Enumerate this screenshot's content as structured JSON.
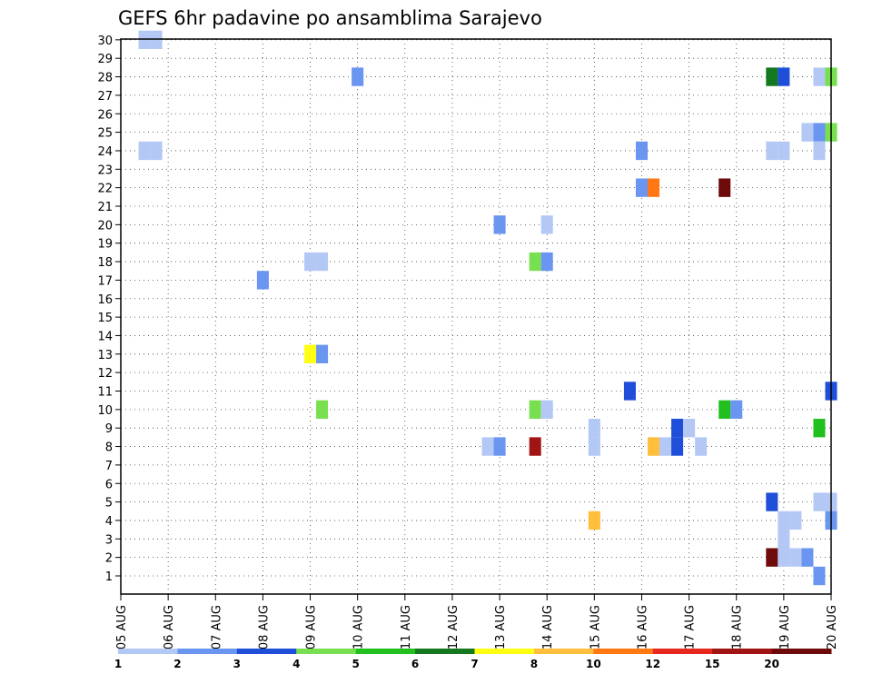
{
  "chart_data": {
    "type": "heatmap",
    "title": "GEFS 6hr padavine po ansamblima Sarajevo",
    "xlabel": "",
    "ylabel": "",
    "x_ticks": [
      "05 AUG",
      "06 AUG",
      "07 AUG",
      "08 AUG",
      "09 AUG",
      "10 AUG",
      "11 AUG",
      "12 AUG",
      "13 AUG",
      "14 AUG",
      "15 AUG",
      "16 AUG",
      "17 AUG",
      "18 AUG",
      "19 AUG",
      "20 AUG"
    ],
    "y_ticks": [
      1,
      2,
      3,
      4,
      5,
      6,
      7,
      8,
      9,
      10,
      11,
      12,
      13,
      14,
      15,
      16,
      17,
      18,
      19,
      20,
      21,
      22,
      23,
      24,
      25,
      26,
      27,
      28,
      29,
      30
    ],
    "xlim": [
      0,
      15
    ],
    "ylim": [
      0,
      30.5
    ],
    "x_unit": "days since 05 AUG (6-hourly steps)",
    "grid": "dotted",
    "legend": {
      "position": "bottom",
      "colors": [
        "#b4c8f5",
        "#6a95f0",
        "#1f4fd9",
        "#78e050",
        "#22c01e",
        "#14781e",
        "#ffff14",
        "#ffbe3c",
        "#ff7814",
        "#e6281e",
        "#a01414",
        "#6e0a0a"
      ],
      "labels": [
        "1",
        "2",
        "3",
        "4",
        "5",
        "6",
        "7",
        "8",
        "10",
        "12",
        "15",
        "20"
      ]
    },
    "cells": [
      {
        "x": 0.5,
        "y": 30,
        "c": 1
      },
      {
        "x": 0.75,
        "y": 30,
        "c": 1
      },
      {
        "x": 5.0,
        "y": 28,
        "c": 2
      },
      {
        "x": 13.75,
        "y": 28,
        "c": 6
      },
      {
        "x": 14.0,
        "y": 28,
        "c": 3
      },
      {
        "x": 14.75,
        "y": 28,
        "c": 1
      },
      {
        "x": 15.0,
        "y": 28,
        "c": 4
      },
      {
        "x": 14.5,
        "y": 25,
        "c": 1
      },
      {
        "x": 14.75,
        "y": 25,
        "c": 2
      },
      {
        "x": 15.0,
        "y": 25,
        "c": 4
      },
      {
        "x": 0.5,
        "y": 24,
        "c": 1
      },
      {
        "x": 0.75,
        "y": 24,
        "c": 1
      },
      {
        "x": 11.0,
        "y": 24,
        "c": 2
      },
      {
        "x": 13.75,
        "y": 24,
        "c": 1
      },
      {
        "x": 14.0,
        "y": 24,
        "c": 1
      },
      {
        "x": 14.75,
        "y": 24,
        "c": 1
      },
      {
        "x": 11.0,
        "y": 22,
        "c": 2
      },
      {
        "x": 11.25,
        "y": 22,
        "c": 9
      },
      {
        "x": 12.75,
        "y": 22,
        "c": 12
      },
      {
        "x": 8.0,
        "y": 20,
        "c": 2
      },
      {
        "x": 9.0,
        "y": 20,
        "c": 1
      },
      {
        "x": 4.0,
        "y": 18,
        "c": 1
      },
      {
        "x": 4.25,
        "y": 18,
        "c": 1
      },
      {
        "x": 8.75,
        "y": 18,
        "c": 4
      },
      {
        "x": 9.0,
        "y": 18,
        "c": 2
      },
      {
        "x": 3.0,
        "y": 17,
        "c": 2
      },
      {
        "x": 4.0,
        "y": 13,
        "c": 7
      },
      {
        "x": 4.25,
        "y": 13,
        "c": 2
      },
      {
        "x": 10.75,
        "y": 11,
        "c": 3
      },
      {
        "x": 15.0,
        "y": 11,
        "c": 3
      },
      {
        "x": 4.25,
        "y": 10,
        "c": 4
      },
      {
        "x": 8.75,
        "y": 10,
        "c": 4
      },
      {
        "x": 9.0,
        "y": 10,
        "c": 1
      },
      {
        "x": 12.75,
        "y": 10,
        "c": 5
      },
      {
        "x": 13.0,
        "y": 10,
        "c": 2
      },
      {
        "x": 10.0,
        "y": 9,
        "c": 1
      },
      {
        "x": 11.75,
        "y": 9,
        "c": 3
      },
      {
        "x": 12.0,
        "y": 9,
        "c": 1
      },
      {
        "x": 14.75,
        "y": 9,
        "c": 5
      },
      {
        "x": 7.75,
        "y": 8,
        "c": 1
      },
      {
        "x": 8.0,
        "y": 8,
        "c": 2
      },
      {
        "x": 8.75,
        "y": 8,
        "c": 11
      },
      {
        "x": 10.0,
        "y": 8,
        "c": 1
      },
      {
        "x": 11.25,
        "y": 8,
        "c": 8
      },
      {
        "x": 11.5,
        "y": 8,
        "c": 1
      },
      {
        "x": 11.75,
        "y": 8,
        "c": 3
      },
      {
        "x": 12.25,
        "y": 8,
        "c": 1
      },
      {
        "x": 13.75,
        "y": 5,
        "c": 3
      },
      {
        "x": 14.75,
        "y": 5,
        "c": 1
      },
      {
        "x": 15.0,
        "y": 5,
        "c": 1
      },
      {
        "x": 10.0,
        "y": 4,
        "c": 8
      },
      {
        "x": 14.0,
        "y": 4,
        "c": 1
      },
      {
        "x": 14.25,
        "y": 4,
        "c": 1
      },
      {
        "x": 15.0,
        "y": 4,
        "c": 2
      },
      {
        "x": 14.0,
        "y": 3,
        "c": 1
      },
      {
        "x": 13.75,
        "y": 2,
        "c": 12
      },
      {
        "x": 14.0,
        "y": 2,
        "c": 1
      },
      {
        "x": 14.25,
        "y": 2,
        "c": 1
      },
      {
        "x": 14.5,
        "y": 2,
        "c": 2
      },
      {
        "x": 14.75,
        "y": 1,
        "c": 2
      }
    ]
  }
}
